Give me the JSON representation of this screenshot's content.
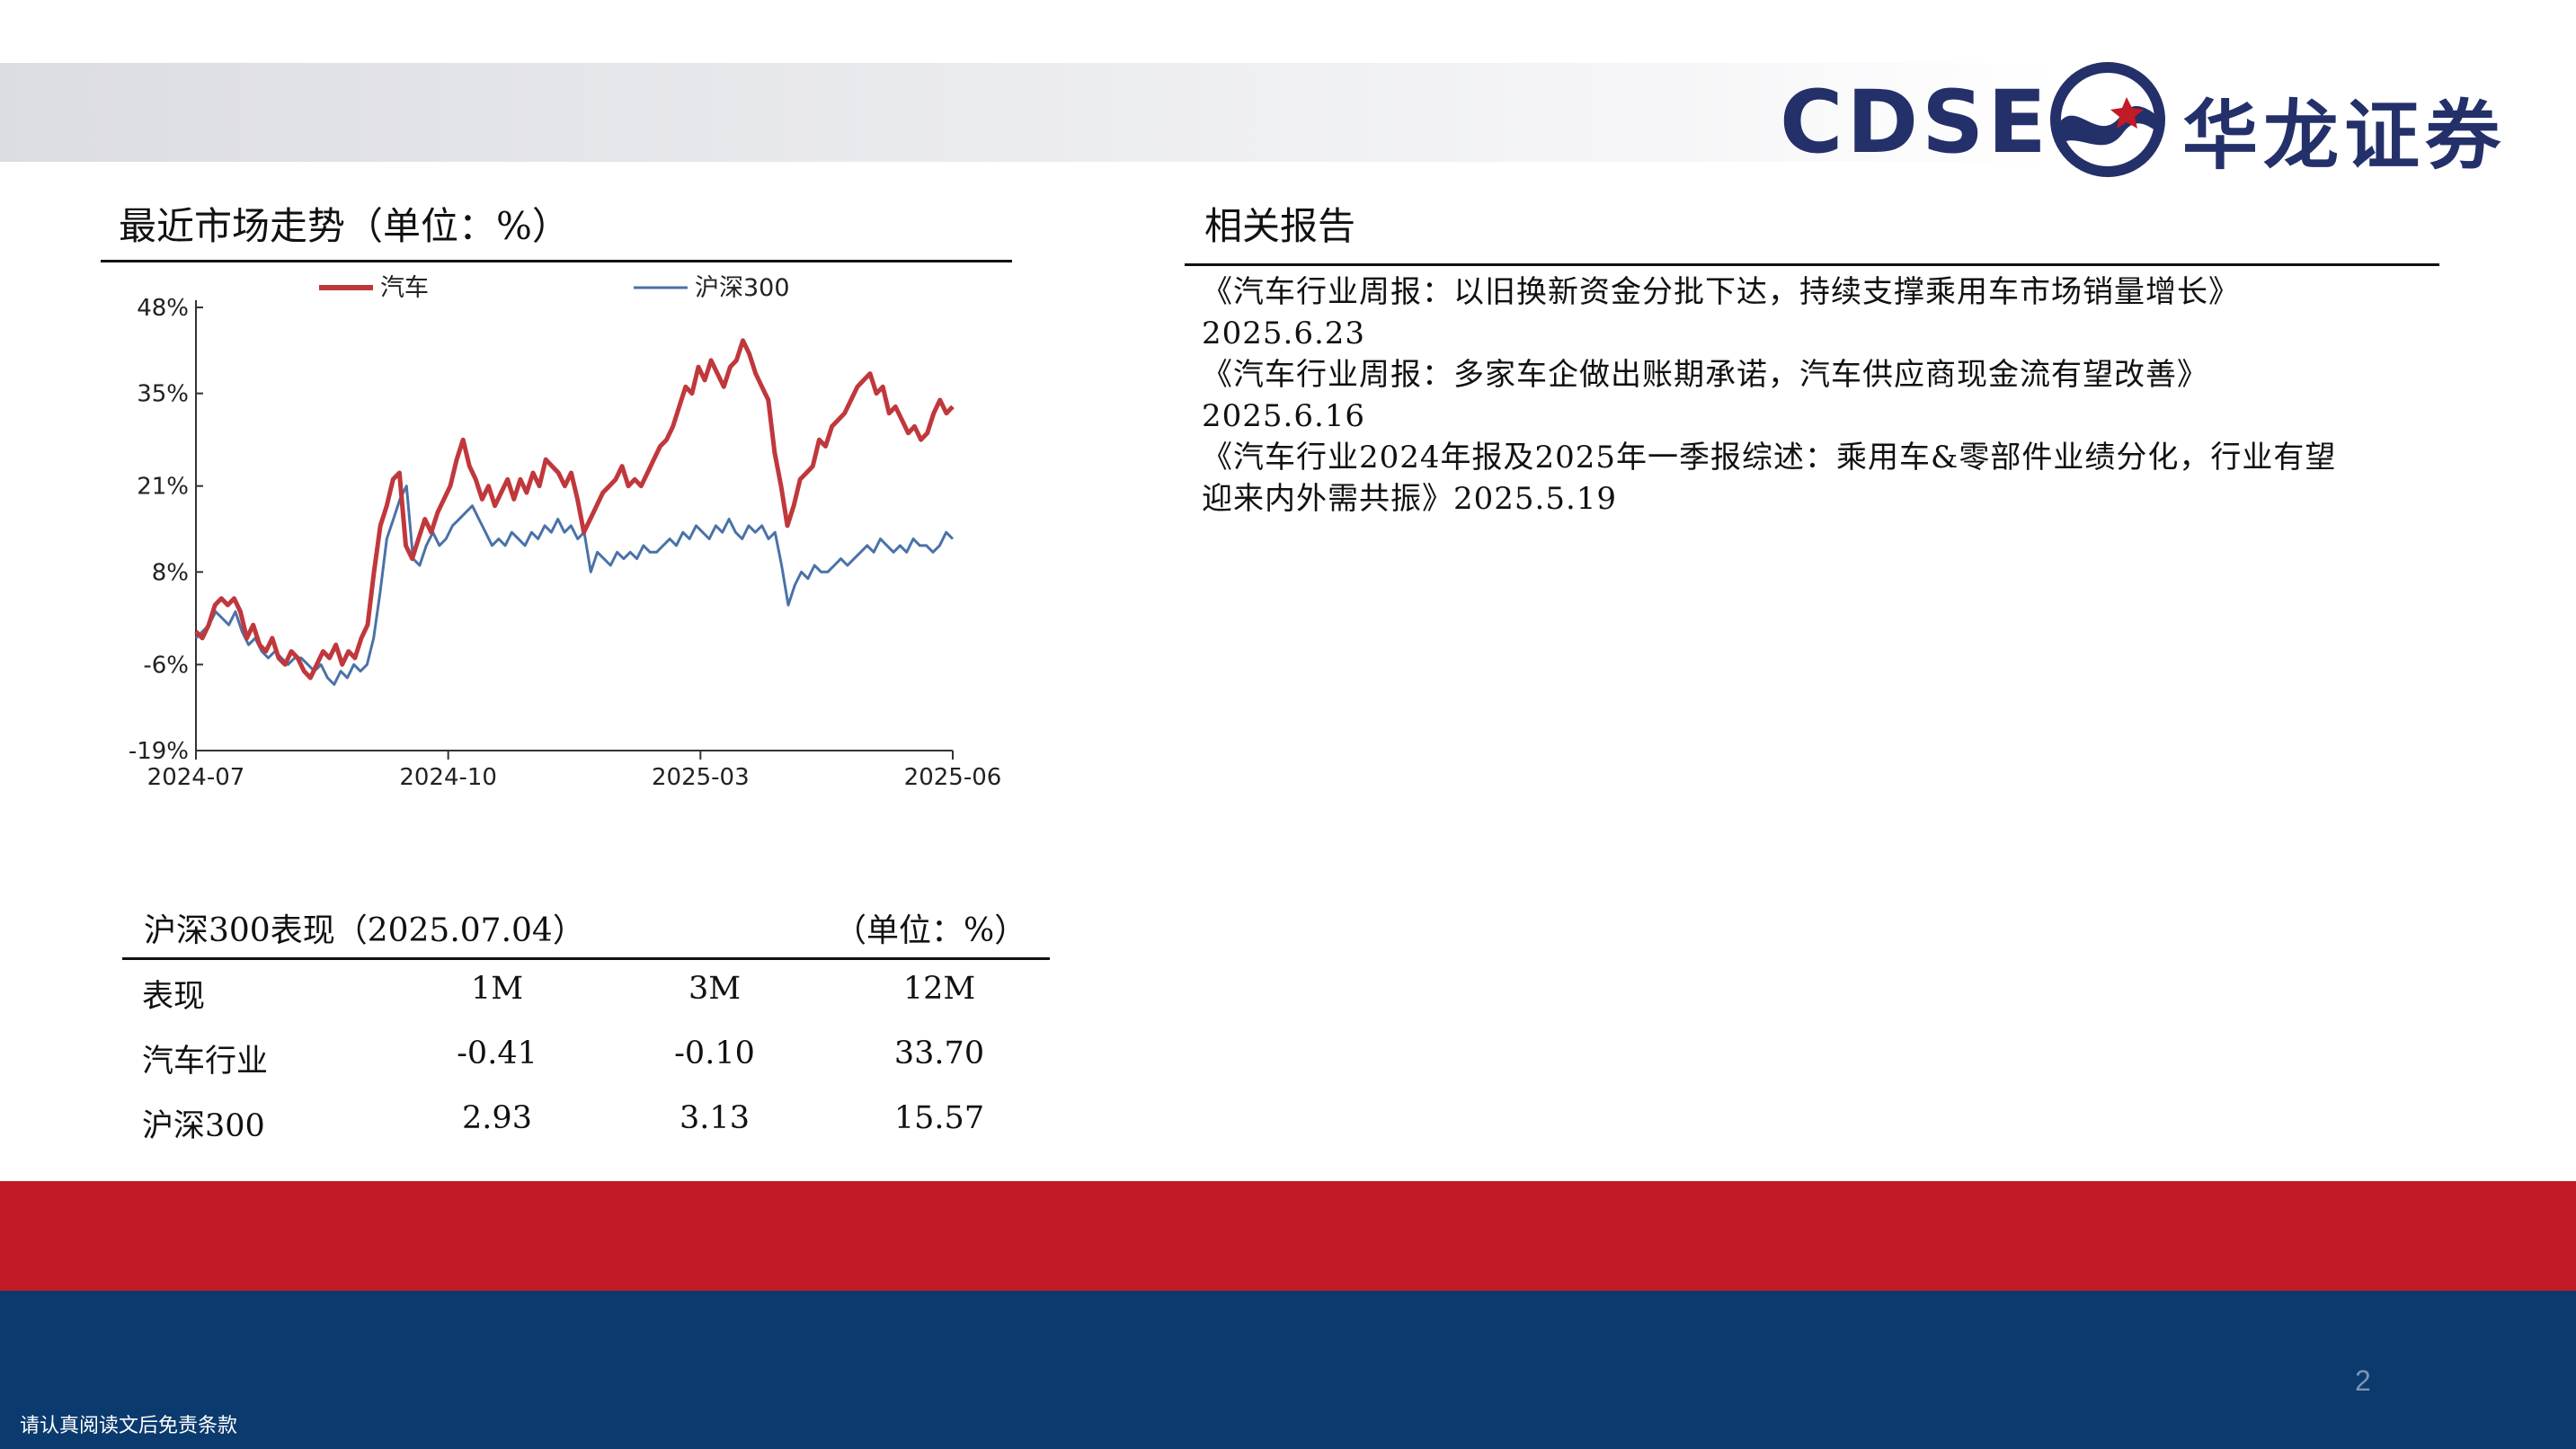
{
  "brand": {
    "name_en": "CDSE",
    "name_cn": "华龙证券",
    "colors": {
      "navy": "#24306a",
      "red": "#c21a26",
      "blue_band": "#0b3a6e"
    }
  },
  "market_trend": {
    "title": "最近市场走势（单位：%）",
    "chart_data": {
      "type": "line",
      "y_ticks": [
        "48%",
        "35%",
        "21%",
        "8%",
        "-6%",
        "-19%"
      ],
      "y_tick_values": [
        48,
        35,
        21,
        8,
        -6,
        -19
      ],
      "ylim": [
        -19,
        48
      ],
      "x_ticks": [
        "2024-07",
        "2024-10",
        "2025-03",
        "2025-06"
      ],
      "legend_position": "top",
      "series": [
        {
          "name": "汽车",
          "color": "#c0383c",
          "values": [
            -1,
            -2,
            0,
            3,
            4,
            3,
            4,
            2,
            -2,
            0,
            -3,
            -4,
            -2,
            -5,
            -6,
            -4,
            -5,
            -7,
            -8,
            -6,
            -4,
            -5,
            -3,
            -6,
            -4,
            -5,
            -2,
            0,
            8,
            15,
            18,
            22,
            23,
            12,
            10,
            13,
            16,
            14,
            17,
            19,
            21,
            25,
            28,
            24,
            22,
            19,
            21,
            18,
            20,
            22,
            19,
            22,
            20,
            23,
            21,
            25,
            24,
            23,
            21,
            23,
            19,
            14,
            16,
            18,
            20,
            21,
            22,
            24,
            21,
            22,
            21,
            23,
            25,
            27,
            28,
            30,
            33,
            36,
            35,
            39,
            37,
            40,
            38,
            36,
            39,
            40,
            43,
            41,
            38,
            36,
            34,
            26,
            21,
            15,
            18,
            22,
            23,
            24,
            28,
            27,
            30,
            31,
            32,
            34,
            36,
            37,
            38,
            35,
            36,
            32,
            33,
            31,
            29,
            30,
            28,
            29,
            32,
            34,
            32,
            33
          ]
        },
        {
          "name": "沪深300",
          "color": "#4a72a8",
          "values": [
            -2,
            -1,
            0,
            2,
            1,
            0,
            2,
            -1,
            -3,
            -2,
            -4,
            -5,
            -4,
            -5,
            -6,
            -5,
            -5,
            -6,
            -7,
            -6,
            -8,
            -9,
            -7,
            -8,
            -6,
            -7,
            -6,
            -2,
            5,
            13,
            16,
            19,
            21,
            10,
            9,
            12,
            14,
            12,
            13,
            15,
            16,
            17,
            18,
            16,
            14,
            12,
            13,
            12,
            14,
            13,
            12,
            14,
            13,
            15,
            14,
            16,
            14,
            15,
            13,
            14,
            8,
            11,
            10,
            9,
            11,
            10,
            11,
            10,
            12,
            11,
            11,
            12,
            13,
            12,
            14,
            13,
            15,
            14,
            13,
            15,
            14,
            16,
            14,
            13,
            15,
            14,
            15,
            13,
            14,
            9,
            3,
            6,
            8,
            7,
            9,
            8,
            8,
            9,
            10,
            9,
            10,
            11,
            12,
            11,
            13,
            12,
            11,
            12,
            11,
            13,
            12,
            12,
            11,
            12,
            14,
            13
          ]
        }
      ]
    }
  },
  "related_reports": {
    "title": "相关报告",
    "lines": [
      "《汽车行业周报：以旧换新资金分批下达，持续支撑乘用车市场销量增长》",
      "2025.6.23",
      "《汽车行业周报：多家车企做出账期承诺，汽车供应商现金流有望改善》",
      "2025.6.16",
      "《汽车行业2024年报及2025年一季报综述：乘用车&零部件业绩分化，行业有望",
      "迎来内外需共振》2025.5.19"
    ]
  },
  "performance": {
    "title": "沪深300表现（2025.07.04）",
    "unit": "（单位：%）",
    "header": [
      "表现",
      "1M",
      "3M",
      "12M"
    ],
    "rows": [
      [
        "汽车行业",
        "-0.41",
        "-0.10",
        "33.70"
      ],
      [
        "沪深300",
        "2.93",
        "3.13",
        "15.57"
      ]
    ]
  },
  "footer": {
    "page_number": "2",
    "disclaimer": "请认真阅读文后免责条款"
  }
}
